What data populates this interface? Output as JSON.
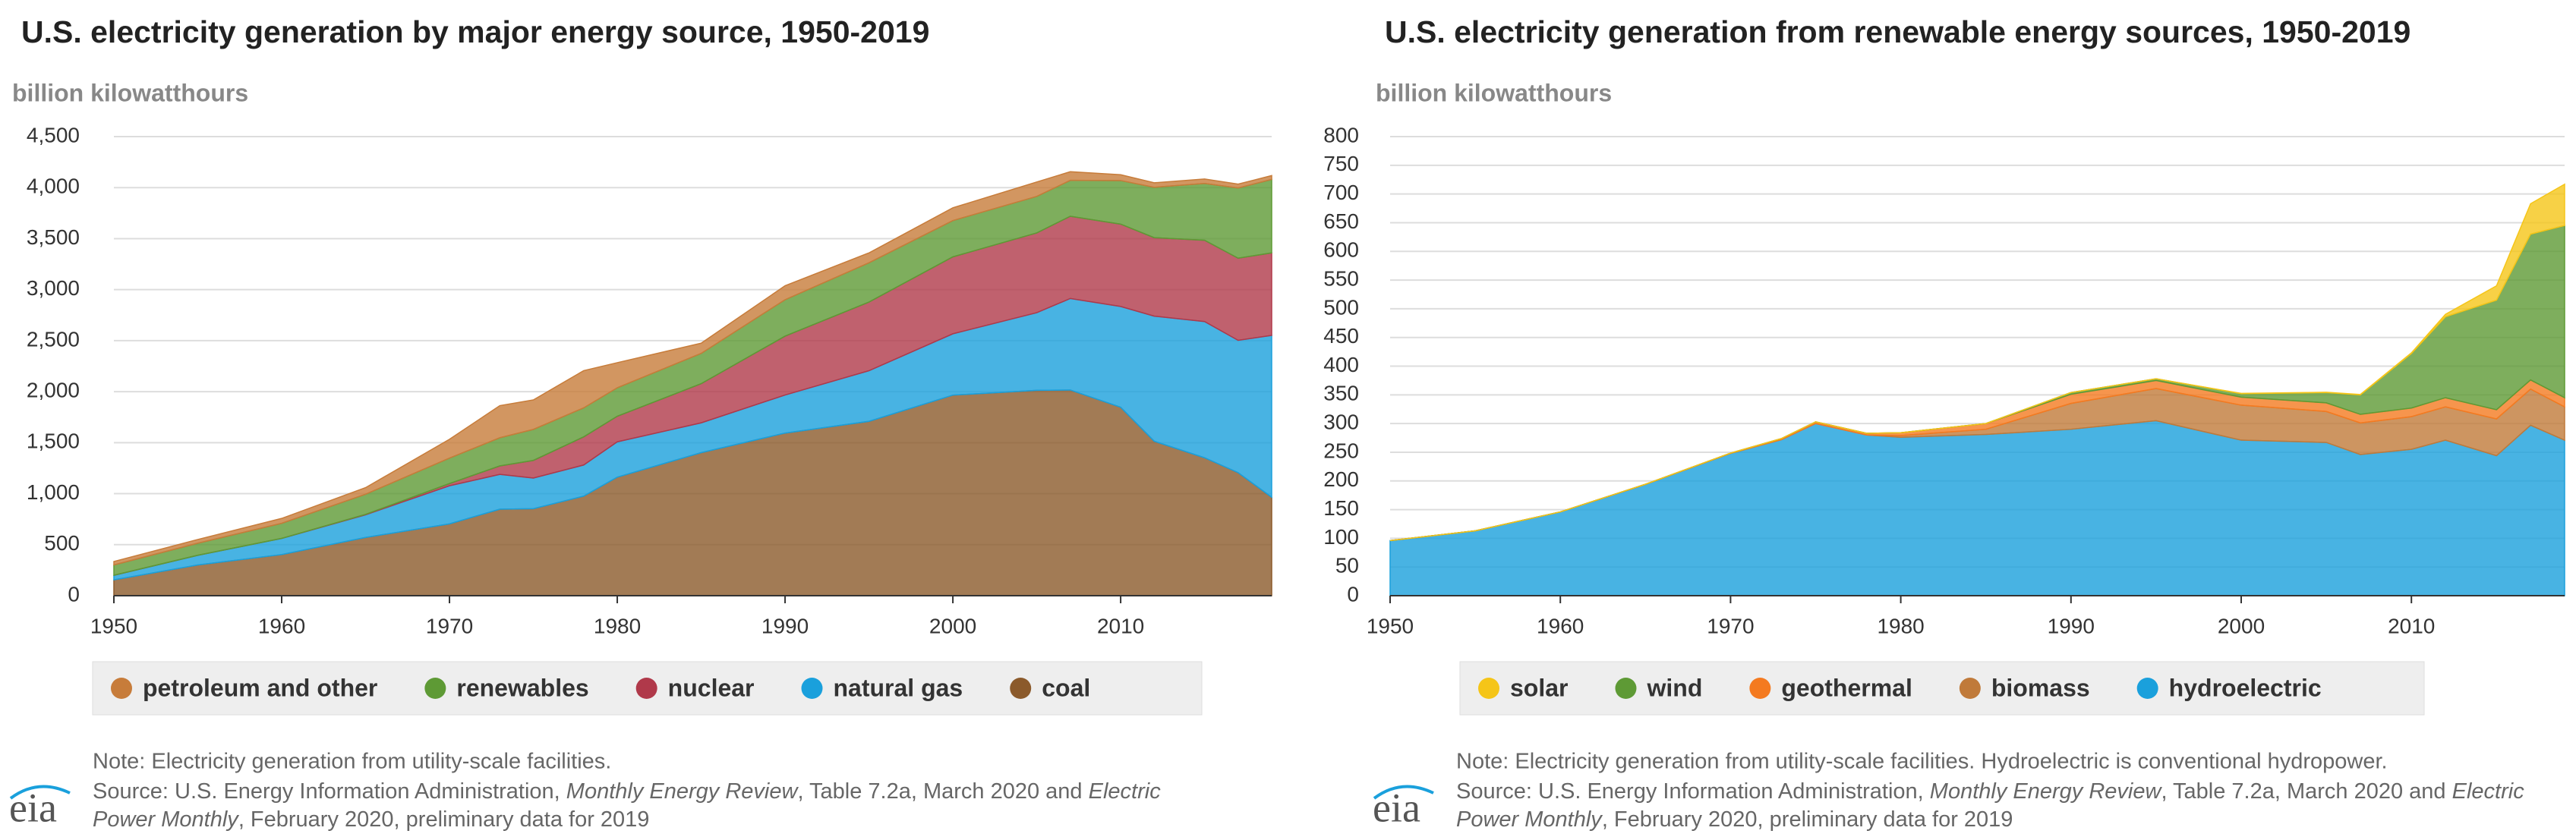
{
  "chart_data": [
    {
      "type": "area",
      "title": "U.S. electricity generation by major energy source, 1950-2019",
      "y_label": "billion kilowatthours",
      "x": [
        1950,
        1955,
        1960,
        1965,
        1970,
        1973,
        1975,
        1978,
        1980,
        1985,
        1990,
        1995,
        2000,
        2005,
        2007,
        2010,
        2012,
        2015,
        2017,
        2019
      ],
      "series": [
        {
          "name": "coal",
          "color": "#8b5a2b",
          "values": [
            155,
            301,
            403,
            571,
            704,
            848,
            853,
            976,
            1162,
            1402,
            1594,
            1709,
            1966,
            2013,
            2016,
            1847,
            1514,
            1352,
            1206,
            965
          ]
        },
        {
          "name": "natural gas",
          "color": "#1aa0dc",
          "values": [
            45,
            95,
            158,
            222,
            373,
            341,
            300,
            305,
            346,
            292,
            373,
            496,
            601,
            761,
            897,
            988,
            1226,
            1335,
            1297,
            1586
          ]
        },
        {
          "name": "nuclear",
          "color": "#b0394a",
          "values": [
            0,
            0,
            0.5,
            4,
            22,
            83,
            173,
            276,
            251,
            384,
            577,
            673,
            754,
            782,
            806,
            807,
            769,
            797,
            805,
            809
          ]
        },
        {
          "name": "renewables",
          "color": "#5e9a35",
          "values": [
            101,
            118,
            148,
            197,
            250,
            276,
            304,
            284,
            279,
            297,
            357,
            385,
            356,
            358,
            352,
            427,
            494,
            557,
            688,
            720
          ]
        },
        {
          "name": "petroleum and other",
          "color": "#c77c3a",
          "values": [
            34,
            37,
            48,
            65,
            184,
            315,
            289,
            365,
            246,
            100,
            137,
            97,
            125,
            141,
            85,
            57,
            44,
            43,
            38,
            38
          ]
        }
      ],
      "xlim": [
        1950,
        2019
      ],
      "xticks": [
        1950,
        1960,
        1970,
        1980,
        1990,
        2000,
        2010
      ],
      "ylim": [
        0,
        4500
      ],
      "yticks": [
        0,
        500,
        {
          "value": 1000,
          "label": "1,000"
        },
        {
          "value": 1500,
          "label": "1,500"
        },
        {
          "value": 2000,
          "label": "2,000"
        },
        {
          "value": 2500,
          "label": "2,500"
        },
        {
          "value": 3000,
          "label": "3,000"
        },
        {
          "value": 3500,
          "label": "3,500"
        },
        {
          "value": 4000,
          "label": "4,000"
        },
        {
          "value": 4500,
          "label": "4,500"
        }
      ],
      "grid": true,
      "note": "Note: Electricity generation from utility-scale facilities.",
      "source": [
        {
          "text": "Source: U.S. Energy Information Administration, ",
          "italic": false
        },
        {
          "text": "Monthly Energy Review",
          "italic": true
        },
        {
          "text": ", Table 7.2a, March 2020 and ",
          "italic": false
        },
        {
          "text": "Electric",
          "italic": true
        }
      ],
      "source_line2": [
        {
          "text": "Power Monthly",
          "italic": true
        },
        {
          "text": ", February 2020, preliminary data for 2019",
          "italic": false
        }
      ],
      "logo": "eia"
    },
    {
      "type": "area",
      "title": "U.S. electricity generation from renewable energy sources, 1950-2019",
      "y_label": "billion kilowatthours",
      "x": [
        1950,
        1955,
        1960,
        1965,
        1970,
        1973,
        1975,
        1978,
        1980,
        1985,
        1990,
        1995,
        2000,
        2005,
        2007,
        2010,
        2012,
        2015,
        2017,
        2019
      ],
      "series": [
        {
          "name": "hydroelectric",
          "color": "#1aa0dc",
          "values": [
            96,
            113,
            146,
            194,
            248,
            272,
            300,
            280,
            276,
            281,
            290,
            305,
            271,
            267,
            246,
            255,
            271,
            244,
            297,
            271
          ]
        },
        {
          "name": "biomass",
          "color": "#c07a3a",
          "values": [
            0,
            0,
            0,
            0,
            0,
            0,
            0,
            0,
            3,
            9,
            45,
            56,
            61,
            54,
            55,
            57,
            58,
            64,
            63,
            58
          ]
        },
        {
          "name": "geothermal",
          "color": "#f47a20",
          "values": [
            0,
            0,
            0,
            0.2,
            0.5,
            2,
            3,
            3,
            5,
            10,
            16,
            14,
            14,
            15,
            15,
            15,
            16,
            16,
            16,
            16
          ]
        },
        {
          "name": "wind",
          "color": "#5e9a35",
          "values": [
            0,
            0,
            0,
            0,
            0,
            0,
            0,
            0,
            0,
            0,
            3,
            3,
            6,
            18,
            34,
            95,
            141,
            191,
            254,
            300
          ]
        },
        {
          "name": "solar",
          "color": "#f5c518",
          "values": [
            0,
            0,
            0,
            0,
            0,
            0,
            0,
            0,
            0,
            0,
            0,
            0,
            0.5,
            0.5,
            0.6,
            1.2,
            4.3,
            25,
            53,
            72
          ]
        }
      ],
      "xlim": [
        1950,
        2019
      ],
      "xticks": [
        1950,
        1960,
        1970,
        1980,
        1990,
        2000,
        2010
      ],
      "ylim": [
        0,
        800
      ],
      "yticks": [
        0,
        50,
        100,
        150,
        200,
        250,
        300,
        350,
        400,
        450,
        500,
        550,
        600,
        650,
        700,
        750,
        800
      ],
      "grid": true,
      "note": "Note: Electricity generation from utility-scale facilities. Hydroelectric is conventional hydropower.",
      "source": [
        {
          "text": "Source: U.S. Energy Information Administration, ",
          "italic": false
        },
        {
          "text": "Monthly Energy Review",
          "italic": true
        },
        {
          "text": ", Table 7.2a, March 2020 and ",
          "italic": false
        },
        {
          "text": "Electric",
          "italic": true
        }
      ],
      "source_line2": [
        {
          "text": "Power Monthly",
          "italic": true
        },
        {
          "text": ", February 2020, preliminary data for 2019",
          "italic": false
        }
      ],
      "logo": "eia"
    }
  ]
}
